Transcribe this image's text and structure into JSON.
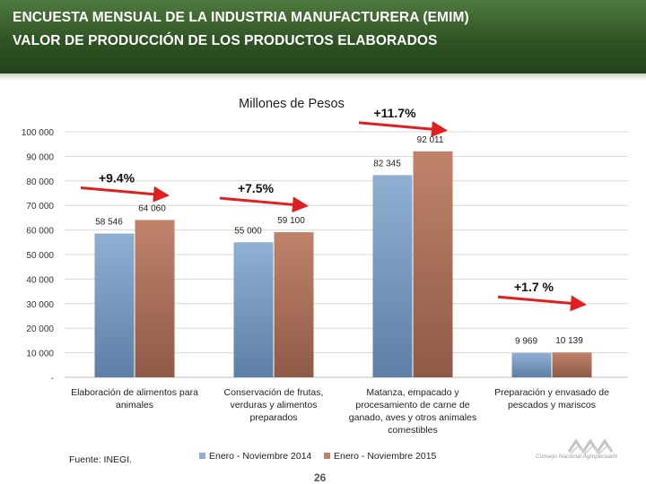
{
  "header": {
    "line1": "ENCUESTA MENSUAL DE LA INDUSTRIA MANUFACTURERA (EMIM)",
    "line2": "VALOR DE PRODUCCIÓN DE LOS PRODUCTOS ELABORADOS"
  },
  "footer": {
    "source": "Fuente: INEGI.",
    "page_number": "26",
    "logo_text": "Consejo Nacional Agropecuario"
  },
  "colors": {
    "series_2014": "#8fb0d2",
    "series_2015": "#c0836a",
    "arrow": "#e02020",
    "grid": "#d9d9d9"
  },
  "chart_data": {
    "type": "bar",
    "title": "Millones de Pesos",
    "xlabel": "",
    "ylabel": "",
    "ylim": [
      0,
      100000
    ],
    "yticks": [
      0,
      10000,
      20000,
      30000,
      40000,
      50000,
      60000,
      70000,
      80000,
      90000,
      100000
    ],
    "ytick_labels": [
      "-",
      "10 000",
      "20 000",
      "30 000",
      "40 000",
      "50 000",
      "60 000",
      "70 000",
      "80 000",
      "90 000",
      "100 000"
    ],
    "grid": true,
    "legend_position": "bottom",
    "categories": [
      [
        "Elaboración de alimentos para",
        "animales"
      ],
      [
        "Conservación de frutas,",
        "verduras y alimentos",
        "preparados"
      ],
      [
        "Matanza, empacado y",
        "procesamiento de carne de",
        "ganado, aves y otros animales",
        "comestibles"
      ],
      [
        "Preparación y envasado de",
        "pescados y mariscos"
      ]
    ],
    "series": [
      {
        "name": "Enero - Noviembre 2014",
        "values": [
          58546,
          55000,
          82345,
          9969
        ],
        "labels": [
          "58 546",
          "55 000",
          "82 345",
          "9 969"
        ]
      },
      {
        "name": "Enero - Noviembre 2015",
        "values": [
          64060,
          59100,
          92011,
          10139
        ],
        "labels": [
          "64 060",
          "59 100",
          "92 011",
          "10 139"
        ]
      }
    ],
    "annotations": [
      "+9.4%",
      "+7.5%",
      "+11.7%",
      "+1.7 %"
    ]
  }
}
